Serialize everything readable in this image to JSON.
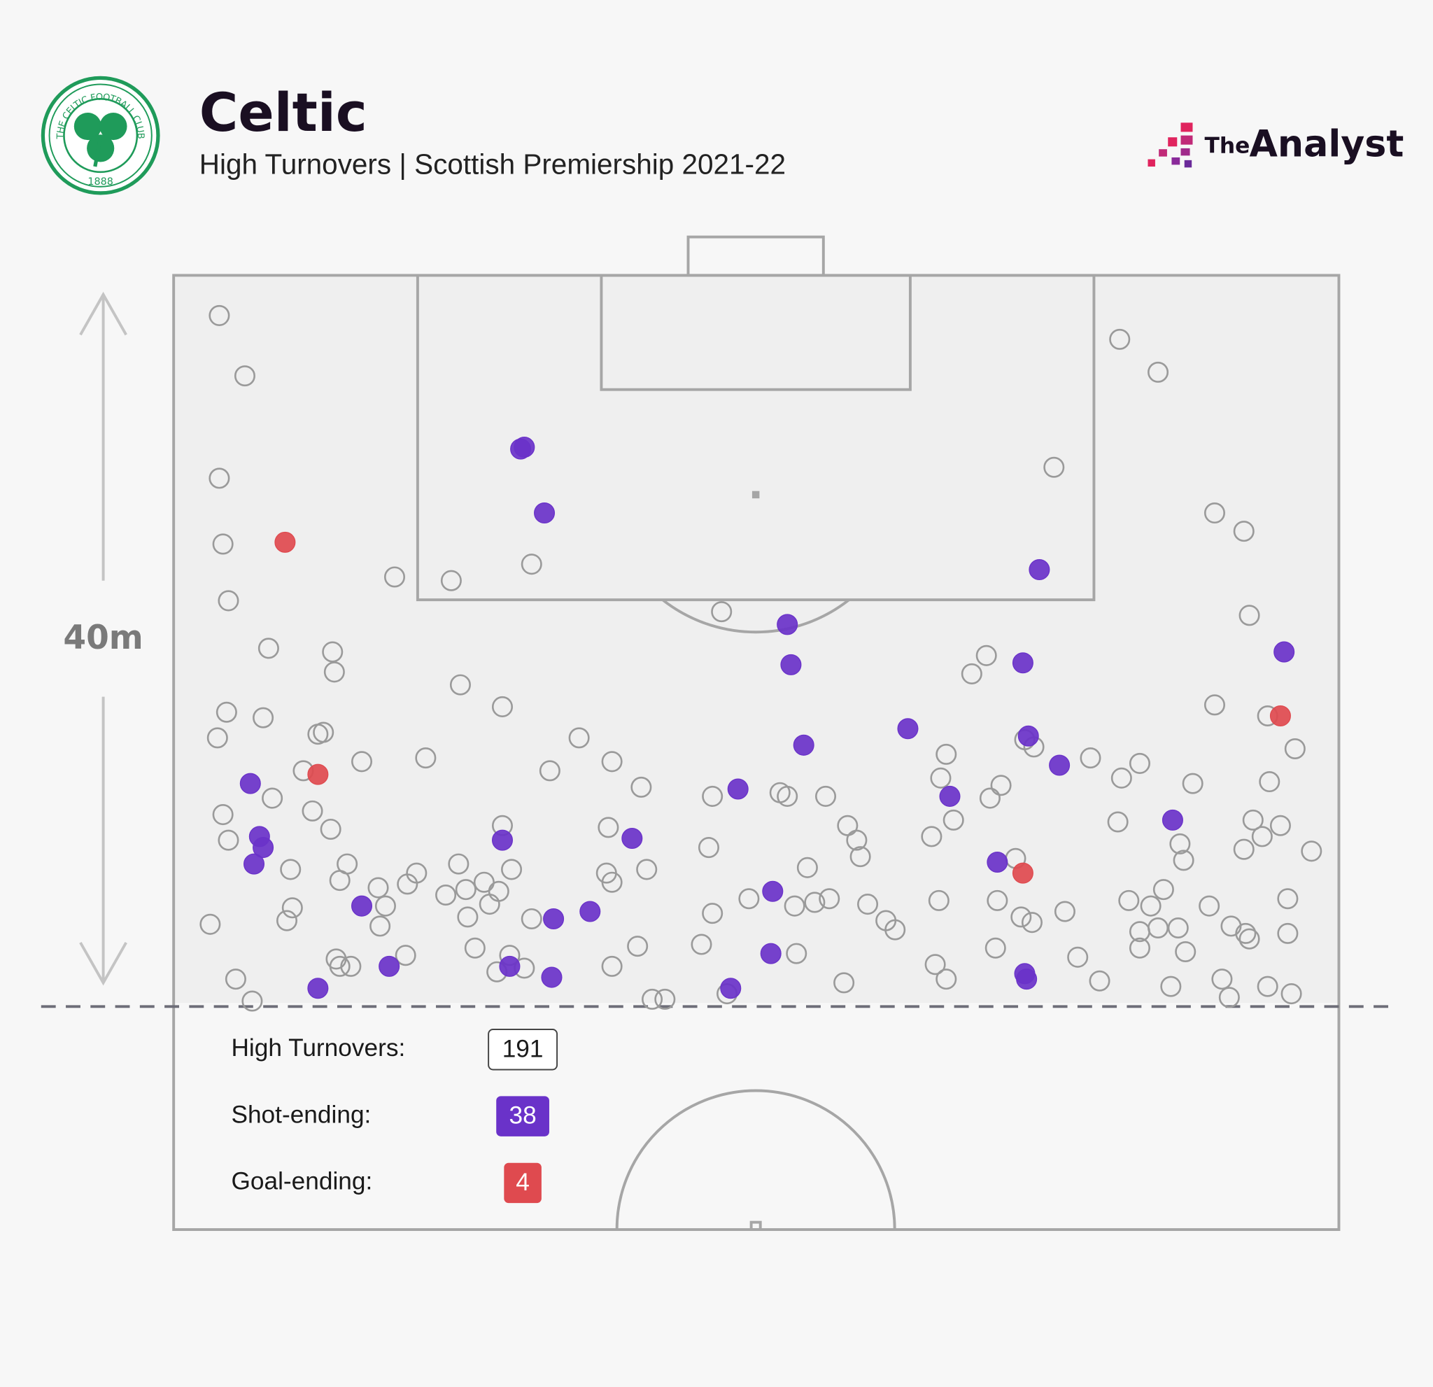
{
  "header": {
    "title": "Celtic",
    "subtitle": "High Turnovers | Scottish Premiership 2021-22",
    "crest_text": "THE CELTIC FOOTBALL CLUB",
    "crest_year": "1888",
    "brand_prefix": "The",
    "brand_name": "Analyst"
  },
  "chart_data": {
    "type": "scatter",
    "xlim": [
      0,
      63.8
    ],
    "ylim": [
      0,
      52.2
    ],
    "threshold": {
      "value": 40,
      "label": "40m"
    },
    "series": [
      {
        "name": "High Turnovers:",
        "count": 191,
        "color": "#9a9a9a",
        "filled": false,
        "x": [
          2.5,
          3.9,
          2.5,
          2.7,
          3.0,
          5.2,
          8.7,
          8.8,
          2.9,
          4.9,
          2.4,
          7.9,
          8.2,
          7.1,
          10.3,
          13.8,
          15.7,
          18.0,
          12.1,
          15.2,
          19.6,
          22.2,
          24.0,
          20.6,
          25.6,
          29.5,
          30.0,
          33.2,
          33.6,
          35.7,
          2.7,
          5.4,
          3.0,
          7.6,
          8.6,
          6.4,
          9.5,
          9.1,
          2.0,
          6.5,
          6.2,
          11.2,
          11.6,
          11.3,
          12.8,
          13.3,
          15.6,
          14.9,
          16.0,
          16.1,
          17.0,
          17.8,
          17.3,
          18.5,
          18.0,
          19.6,
          23.8,
          23.7,
          24.0,
          25.9,
          29.3,
          29.5,
          31.5,
          34.0,
          34.7,
          35.1,
          35.9,
          36.9,
          37.4,
          37.6,
          38.0,
          39.0,
          39.5,
          41.5,
          41.9,
          42.7,
          42.3,
          42.0,
          43.7,
          44.5,
          45.3,
          44.7,
          45.1,
          46.1,
          46.4,
          47.0,
          48.8,
          46.6,
          47.1,
          50.2,
          48.2,
          51.8,
          53.9,
          57.0,
          58.6,
          58.9,
          57.0,
          59.9,
          61.4,
          60.0,
          55.8,
          52.9,
          51.9,
          51.7,
          55.1,
          55.3,
          59.1,
          59.6,
          60.6,
          58.6,
          62.3,
          54.2,
          52.3,
          53.5,
          56.7,
          61.0,
          52.9,
          52.9,
          53.9,
          55.0,
          55.4,
          57.9,
          58.7,
          58.9,
          61.0,
          49.5,
          50.7,
          54.6,
          57.4,
          57.8,
          59.9,
          61.2,
          45.0,
          41.7,
          42.3,
          36.7,
          34.1,
          28.9,
          25.4,
          24.0,
          26.2,
          26.9,
          30.3,
          19.2,
          17.7,
          18.4,
          16.5,
          12.7,
          8.9,
          9.1,
          9.7,
          3.4,
          4.3
        ],
        "y": [
          2.2,
          5.5,
          11.1,
          14.7,
          17.8,
          20.4,
          20.6,
          21.7,
          23.9,
          24.2,
          25.3,
          25.1,
          25.0,
          27.1,
          26.6,
          26.4,
          22.4,
          23.6,
          16.5,
          16.7,
          15.8,
          25.3,
          26.6,
          27.1,
          28.0,
          28.5,
          18.4,
          28.3,
          28.5,
          28.5,
          29.5,
          28.6,
          30.9,
          29.3,
          30.3,
          32.5,
          32.2,
          33.1,
          35.5,
          34.6,
          35.3,
          33.5,
          34.5,
          35.6,
          33.3,
          32.7,
          32.2,
          33.9,
          33.6,
          35.1,
          33.2,
          33.7,
          34.4,
          32.5,
          30.1,
          35.2,
          30.2,
          32.7,
          33.2,
          32.5,
          31.3,
          34.9,
          34.1,
          34.5,
          32.4,
          34.3,
          34.1,
          30.1,
          30.9,
          31.8,
          34.4,
          35.3,
          35.8,
          30.7,
          34.2,
          29.8,
          26.2,
          27.5,
          21.8,
          20.8,
          27.9,
          28.6,
          34.2,
          31.9,
          35.1,
          35.4,
          34.8,
          25.4,
          25.8,
          26.4,
          10.5,
          3.5,
          5.3,
          13.0,
          14.0,
          18.6,
          23.5,
          24.1,
          25.9,
          27.7,
          27.8,
          26.7,
          27.5,
          29.9,
          31.1,
          32.0,
          29.8,
          30.7,
          30.1,
          31.4,
          31.5,
          33.6,
          34.2,
          34.5,
          34.5,
          34.1,
          35.9,
          36.8,
          35.7,
          35.7,
          37.0,
          35.6,
          36.0,
          36.3,
          36.0,
          37.3,
          38.6,
          38.9,
          38.5,
          39.5,
          38.9,
          39.3,
          36.8,
          37.7,
          38.5,
          38.7,
          37.1,
          36.6,
          36.7,
          37.8,
          39.6,
          39.6,
          39.3,
          37.9,
          38.1,
          37.2,
          36.8,
          37.2,
          37.4,
          37.8,
          37.8,
          38.5,
          39.7
        ]
      },
      {
        "name": "Shot-ending:",
        "count": 38,
        "color": "#6a32c9",
        "filled": true,
        "x": [
          19.0,
          19.2,
          20.3,
          47.4,
          33.6,
          33.8,
          46.5,
          60.8,
          40.2,
          34.5,
          46.8,
          48.5,
          4.2,
          30.9,
          42.5,
          54.7,
          4.7,
          4.9,
          4.4,
          18.0,
          25.1,
          45.1,
          32.8,
          10.3,
          22.8,
          20.8,
          32.7,
          11.8,
          18.4,
          20.7,
          7.9,
          30.5,
          46.6,
          46.7
        ],
        "y": [
          9.5,
          9.4,
          13.0,
          16.1,
          19.1,
          21.3,
          21.2,
          20.6,
          24.8,
          25.7,
          25.2,
          26.8,
          27.8,
          28.1,
          28.5,
          29.8,
          30.7,
          31.3,
          32.2,
          30.9,
          30.8,
          32.1,
          33.7,
          34.5,
          34.8,
          35.2,
          37.1,
          37.8,
          37.8,
          38.4,
          39.0,
          39.0,
          38.2,
          38.5
        ]
      },
      {
        "name": "Goal-ending:",
        "count": 4,
        "color": "#df4a4f",
        "filled": true,
        "x": [
          6.1,
          7.9,
          60.6,
          46.5
        ],
        "y": [
          14.6,
          27.3,
          24.1,
          32.7
        ]
      }
    ]
  }
}
